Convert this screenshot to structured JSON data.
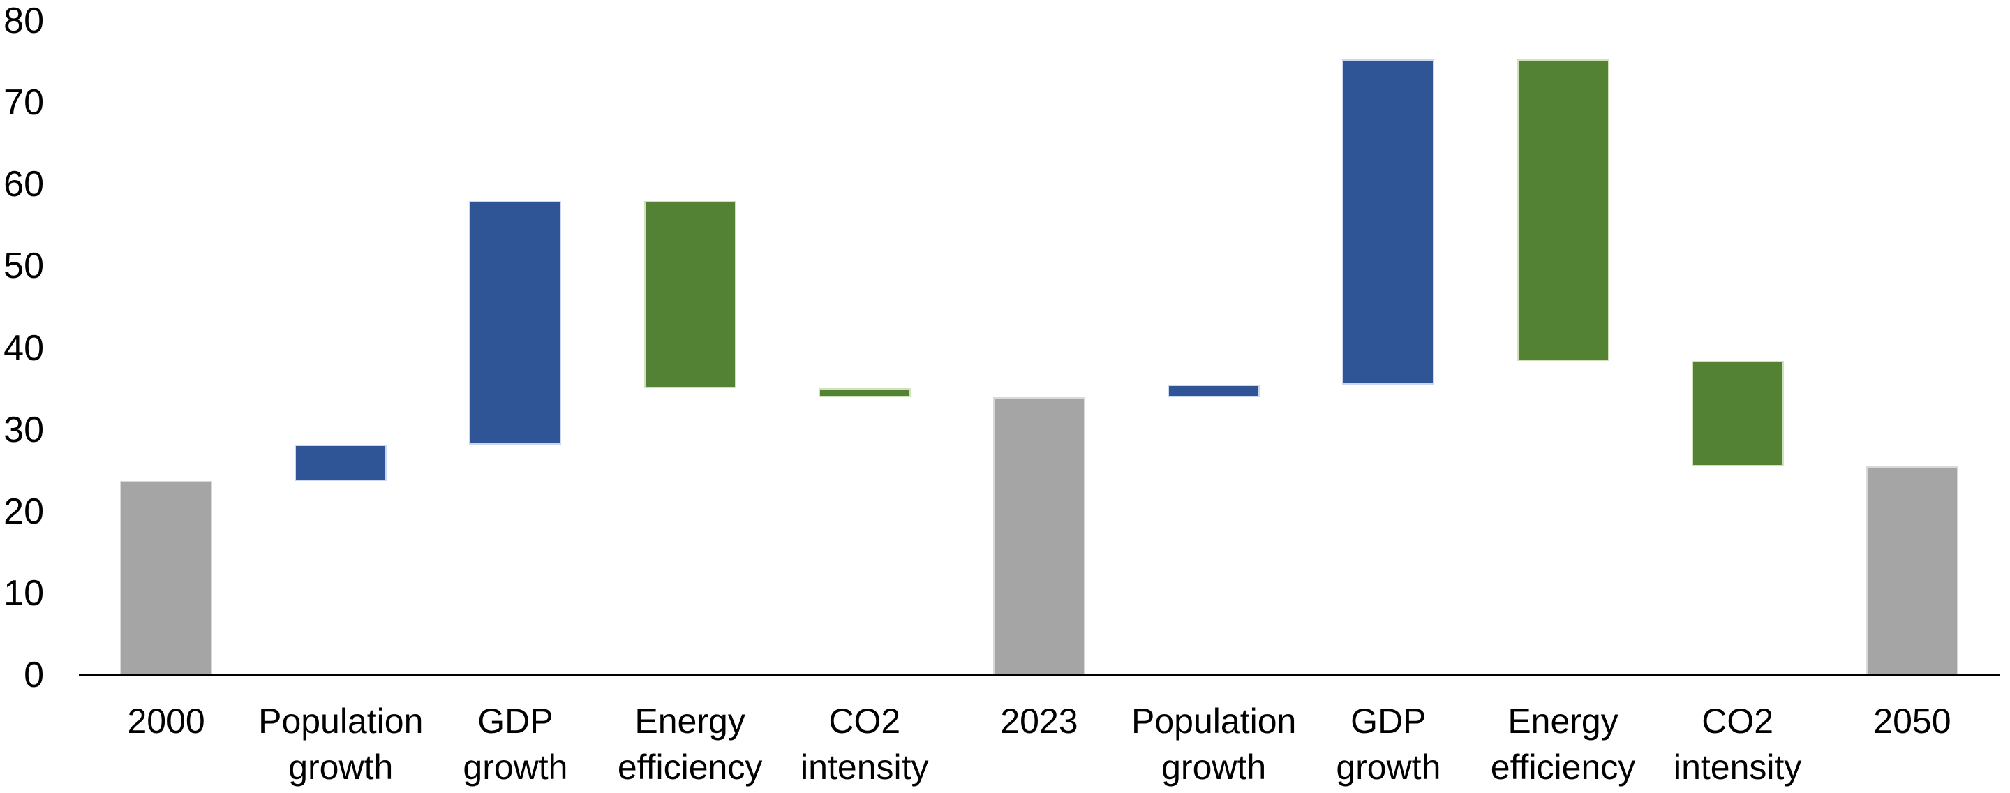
{
  "chart_data": {
    "type": "bar",
    "subtype": "waterfall",
    "title": "",
    "xlabel": "",
    "ylabel": "",
    "ylim": [
      0,
      80
    ],
    "yticks": [
      "0",
      "10",
      "20",
      "30",
      "40",
      "50",
      "60",
      "70",
      "80"
    ],
    "ytick_values": [
      0,
      10,
      20,
      30,
      40,
      50,
      60,
      70,
      80
    ],
    "grid": false,
    "legend": false,
    "background_color": "#ffffff",
    "axis_line_color": "#000000",
    "text_color": "#000000",
    "colors": {
      "total": "#a5a5a5",
      "increase": "#2f5597",
      "decrease": "#548235",
      "total_border": "#d9d9d9",
      "increase_border": "#ccd8ee",
      "decrease_border": "#d0e2bc"
    },
    "categories": [
      "2000",
      "Population growth",
      "GDP growth",
      "Energy efficiency",
      "CO2 intensity",
      "2023",
      "Population growth",
      "GDP growth",
      "Energy efficiency",
      "CO2 intensity",
      "2050"
    ],
    "bars": [
      {
        "label": "2000",
        "lines": [
          "2000"
        ],
        "role": "total",
        "start": 0,
        "end": 23.7,
        "value": 23.7
      },
      {
        "label": "Population growth",
        "lines": [
          "Population",
          "growth"
        ],
        "role": "increase",
        "start": 23.7,
        "end": 28.2,
        "value": 4.5
      },
      {
        "label": "GDP growth",
        "lines": [
          "GDP",
          "growth"
        ],
        "role": "increase",
        "start": 28.2,
        "end": 58.0,
        "value": 29.8
      },
      {
        "label": "Energy efficiency",
        "lines": [
          "Energy",
          "efficiency"
        ],
        "role": "decrease",
        "start": 58.0,
        "end": 35.1,
        "value": -22.9
      },
      {
        "label": "CO2 intensity",
        "lines": [
          "CO2",
          "intensity"
        ],
        "role": "decrease",
        "start": 35.1,
        "end": 34.0,
        "value": -1.1
      },
      {
        "label": "2023",
        "lines": [
          "2023"
        ],
        "role": "total",
        "start": 0,
        "end": 34.0,
        "value": 34.0
      },
      {
        "label": "Population growth",
        "lines": [
          "Population",
          "growth"
        ],
        "role": "increase",
        "start": 34.0,
        "end": 35.5,
        "value": 1.5
      },
      {
        "label": "GDP growth",
        "lines": [
          "GDP",
          "growth"
        ],
        "role": "increase",
        "start": 35.5,
        "end": 75.3,
        "value": 39.8
      },
      {
        "label": "Energy efficiency",
        "lines": [
          "Energy",
          "efficiency"
        ],
        "role": "decrease",
        "start": 75.3,
        "end": 38.4,
        "value": -36.9
      },
      {
        "label": "CO2 intensity",
        "lines": [
          "CO2",
          "intensity"
        ],
        "role": "decrease",
        "start": 38.4,
        "end": 25.5,
        "value": -12.9
      },
      {
        "label": "2050",
        "lines": [
          "2050"
        ],
        "role": "total",
        "start": 0,
        "end": 25.5,
        "value": 25.5
      }
    ]
  }
}
